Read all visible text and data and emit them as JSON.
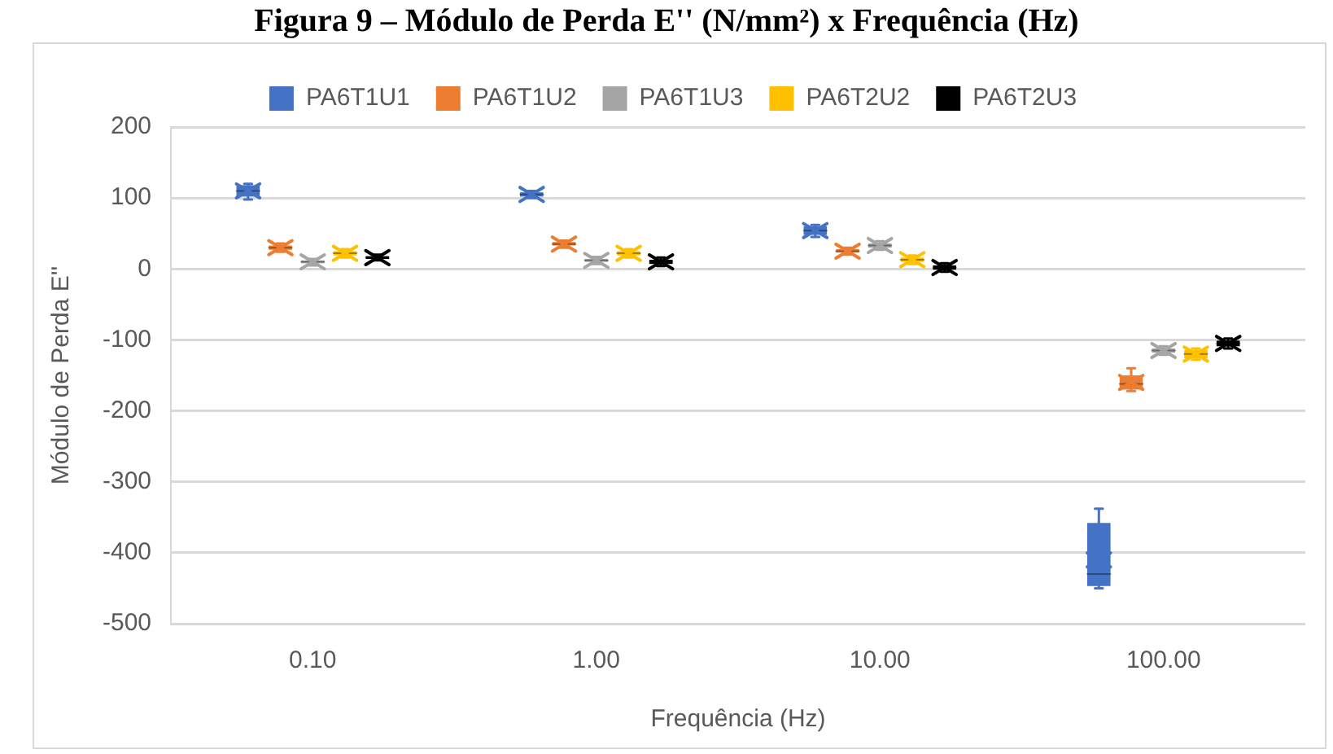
{
  "chart_data": {
    "type": "box",
    "title": "Figura 9 – Módulo de Perda E'' (N/mm²) x Frequência (Hz)",
    "xlabel": "Frequência (Hz)",
    "ylabel": "Módulo de Perda E''",
    "categories": [
      "0.10",
      "1.00",
      "10.00",
      "100.00"
    ],
    "ylim": [
      -500,
      200
    ],
    "yticks": [
      -500,
      -400,
      -300,
      -200,
      -100,
      0,
      100,
      200
    ],
    "grid": "y",
    "legend": "top",
    "series": [
      {
        "name": "PA6T1U1",
        "color": "#4472c4",
        "boxes": [
          {
            "low": 98,
            "q1": 102,
            "median": 110,
            "q3": 118,
            "high": 120,
            "mean": 110
          },
          {
            "low": 100,
            "q1": 102,
            "median": 105,
            "q3": 108,
            "high": 110,
            "mean": 105
          },
          {
            "low": 45,
            "q1": 48,
            "median": 54,
            "q3": 60,
            "high": 62,
            "mean": 54
          },
          {
            "low": -450,
            "q1": -447,
            "median": -430,
            "q3": -358,
            "high": -338,
            "mean": -410
          }
        ]
      },
      {
        "name": "PA6T1U2",
        "color": "#ed7d31",
        "boxes": [
          {
            "low": 24,
            "q1": 27,
            "median": 30,
            "q3": 33,
            "high": 36,
            "mean": 30
          },
          {
            "low": 30,
            "q1": 33,
            "median": 35,
            "q3": 38,
            "high": 40,
            "mean": 35
          },
          {
            "low": 20,
            "q1": 23,
            "median": 25,
            "q3": 28,
            "high": 30,
            "mean": 25
          },
          {
            "low": -172,
            "q1": -170,
            "median": -162,
            "q3": -150,
            "high": -140,
            "mean": -160
          }
        ]
      },
      {
        "name": "PA6T1U3",
        "color": "#a5a5a5",
        "boxes": [
          {
            "low": 5,
            "q1": 8,
            "median": 10,
            "q3": 12,
            "high": 14,
            "mean": 10
          },
          {
            "low": 7,
            "q1": 10,
            "median": 12,
            "q3": 14,
            "high": 17,
            "mean": 12
          },
          {
            "low": 27,
            "q1": 30,
            "median": 33,
            "q3": 36,
            "high": 39,
            "mean": 33
          },
          {
            "low": -121,
            "q1": -118,
            "median": -115,
            "q3": -112,
            "high": -109,
            "mean": -115
          }
        ]
      },
      {
        "name": "PA6T2U2",
        "color": "#ffc000",
        "boxes": [
          {
            "low": 16,
            "q1": 19,
            "median": 22,
            "q3": 25,
            "high": 28,
            "mean": 22
          },
          {
            "low": 16,
            "q1": 19,
            "median": 22,
            "q3": 25,
            "high": 28,
            "mean": 22
          },
          {
            "low": 7,
            "q1": 10,
            "median": 13,
            "q3": 16,
            "high": 19,
            "mean": 13
          },
          {
            "low": -128,
            "q1": -126,
            "median": -120,
            "q3": -114,
            "high": -112,
            "mean": -120
          }
        ]
      },
      {
        "name": "PA6T2U3",
        "color": "#000000",
        "boxes": [
          {
            "low": 12,
            "q1": 14,
            "median": 16,
            "q3": 18,
            "high": 20,
            "mean": 16
          },
          {
            "low": 4,
            "q1": 7,
            "median": 10,
            "q3": 13,
            "high": 16,
            "mean": 10
          },
          {
            "low": -4,
            "q1": -1,
            "median": 2,
            "q3": 5,
            "high": 8,
            "mean": 2
          },
          {
            "low": -112,
            "q1": -109,
            "median": -105,
            "q3": -101,
            "high": -98,
            "mean": -105
          }
        ]
      }
    ]
  }
}
